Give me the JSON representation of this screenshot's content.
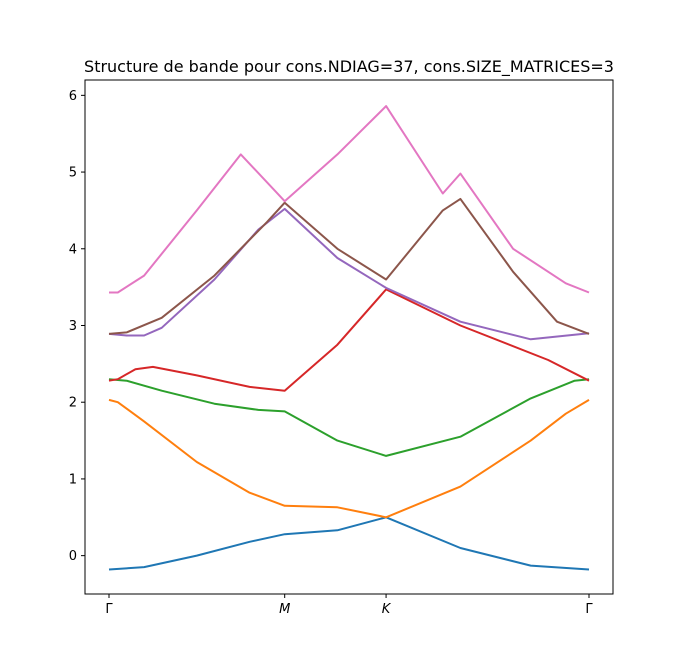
{
  "chart_data": {
    "type": "line",
    "title": "Structure de bande pour cons.NDIAG=37, cons.SIZE_MATRICES=3",
    "xlabel": "",
    "ylabel": "",
    "ylim": [
      -0.5,
      6.2
    ],
    "grid": false,
    "x_ticks": [
      {
        "pos": 0,
        "label": "Γ",
        "italic": false
      },
      {
        "pos": 1,
        "label": "M",
        "italic": true
      },
      {
        "pos": 1.577,
        "label": "K",
        "italic": true
      },
      {
        "pos": 2.732,
        "label": "Γ",
        "italic": false
      }
    ],
    "y_ticks": [
      0,
      1,
      2,
      3,
      4,
      5,
      6
    ],
    "series": [
      {
        "color": "#1f77b4",
        "x": [
          0,
          0.2,
          0.5,
          0.8,
          1.0,
          1.3,
          1.577,
          2.0,
          2.4,
          2.732
        ],
        "y": [
          -0.18,
          -0.15,
          0.0,
          0.18,
          0.28,
          0.33,
          0.5,
          0.1,
          -0.13,
          -0.18
        ]
      },
      {
        "color": "#ff7f0e",
        "x": [
          0,
          0.05,
          0.2,
          0.5,
          0.8,
          1.0,
          1.3,
          1.577,
          2.0,
          2.4,
          2.6,
          2.732
        ],
        "y": [
          2.03,
          2.0,
          1.75,
          1.22,
          0.82,
          0.65,
          0.63,
          0.5,
          0.9,
          1.5,
          1.85,
          2.03
        ]
      },
      {
        "color": "#2ca02c",
        "x": [
          0,
          0.1,
          0.3,
          0.6,
          0.85,
          1.0,
          1.3,
          1.577,
          2.0,
          2.4,
          2.65,
          2.732
        ],
        "y": [
          2.3,
          2.28,
          2.15,
          1.98,
          1.9,
          1.88,
          1.5,
          1.3,
          1.55,
          2.05,
          2.28,
          2.3
        ]
      },
      {
        "color": "#d62728",
        "x": [
          0,
          0.05,
          0.15,
          0.25,
          0.5,
          0.8,
          1.0,
          1.3,
          1.577,
          2.0,
          2.5,
          2.732
        ],
        "y": [
          2.28,
          2.3,
          2.43,
          2.46,
          2.35,
          2.2,
          2.15,
          2.75,
          3.47,
          3.0,
          2.55,
          2.28
        ]
      },
      {
        "color": "#9467bd",
        "x": [
          0,
          0.1,
          0.2,
          0.3,
          0.6,
          0.85,
          1.0,
          1.3,
          1.577,
          2.0,
          2.4,
          2.732
        ],
        "y": [
          2.89,
          2.87,
          2.87,
          2.97,
          3.6,
          4.25,
          4.52,
          3.88,
          3.49,
          3.05,
          2.82,
          2.9
        ]
      },
      {
        "color": "#8c564b",
        "x": [
          0,
          0.1,
          0.3,
          0.6,
          0.9,
          1.0,
          1.3,
          1.577,
          1.9,
          2.0,
          2.3,
          2.55,
          2.732
        ],
        "y": [
          2.89,
          2.91,
          3.1,
          3.65,
          4.35,
          4.6,
          4.0,
          3.6,
          4.5,
          4.65,
          3.7,
          3.05,
          2.89
        ]
      },
      {
        "color": "#e377c2",
        "x": [
          0,
          0.05,
          0.2,
          0.5,
          0.75,
          1.0,
          1.3,
          1.577,
          1.9,
          2.0,
          2.3,
          2.6,
          2.732
        ],
        "y": [
          3.43,
          3.43,
          3.65,
          4.5,
          5.23,
          4.62,
          5.23,
          5.86,
          4.72,
          4.98,
          4.0,
          3.55,
          3.43
        ]
      }
    ]
  }
}
